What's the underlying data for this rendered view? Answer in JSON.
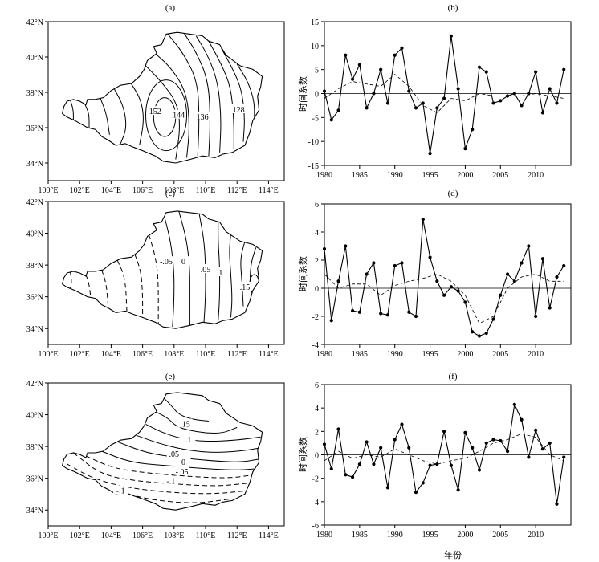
{
  "figure": {
    "panel_labels": [
      "(a)",
      "(b)",
      "(c)",
      "(d)",
      "(e)",
      "(f)"
    ],
    "ts_ylabel": "时间系数",
    "ts_xlabel": "年份",
    "map_lon_ticks": [
      "100°E",
      "102°E",
      "104°E",
      "106°E",
      "108°E",
      "110°E",
      "112°E",
      "114°E"
    ],
    "map_lat_ticks": [
      "42°N",
      "40°N",
      "38°N",
      "36°N",
      "34°N"
    ]
  },
  "chart_data": [
    {
      "type": "contour",
      "panel": "(a)",
      "xlim": [
        100,
        115
      ],
      "ylim": [
        33,
        42
      ],
      "contour_labels": [
        {
          "text": "152",
          "lon": 106.8,
          "lat": 36.9
        },
        {
          "text": "144",
          "lon": 108.3,
          "lat": 36.7
        },
        {
          "text": "136",
          "lon": 109.8,
          "lat": 36.6
        },
        {
          "text": "128",
          "lon": 112.1,
          "lat": 37.0
        }
      ]
    },
    {
      "type": "line",
      "panel": "(b)",
      "xlim": [
        1980,
        2015
      ],
      "ylim": [
        -15,
        15
      ],
      "yticks": [
        -15,
        -10,
        -5,
        0,
        5,
        10,
        15
      ],
      "xticks": [
        1980,
        1985,
        1990,
        1995,
        2000,
        2005,
        2010
      ],
      "reference_line": 0,
      "series": [
        {
          "style": "solid-dots",
          "x": [
            1980,
            1981,
            1982,
            1983,
            1984,
            1985,
            1986,
            1987,
            1988,
            1989,
            1990,
            1991,
            1992,
            1993,
            1994,
            1995,
            1996,
            1997,
            1998,
            1999,
            2000,
            2001,
            2002,
            2003,
            2004,
            2005,
            2006,
            2007,
            2008,
            2009,
            2010,
            2011,
            2012,
            2013,
            2014
          ],
          "values": [
            0.5,
            -5.5,
            -3.5,
            8,
            3,
            6,
            -3,
            0,
            5,
            -2,
            8,
            9.5,
            0.5,
            -3,
            -2,
            -12.5,
            -3,
            -1,
            12,
            1,
            -11.5,
            -7.5,
            5.5,
            4.5,
            -2,
            -1.5,
            -0.5,
            0,
            -2.5,
            0,
            4.5,
            -4,
            1,
            -2,
            5
          ]
        },
        {
          "style": "dashed",
          "x": [
            1980,
            1982,
            1984,
            1986,
            1988,
            1990,
            1992,
            1994,
            1996,
            1998,
            2000,
            2002,
            2004,
            2006,
            2008,
            2010,
            2012,
            2014
          ],
          "values": [
            -1,
            1,
            2.5,
            2,
            1.5,
            4,
            1.5,
            -2.5,
            -4,
            -1,
            -1.5,
            0,
            -0.5,
            -0.5,
            -0.5,
            0,
            -0.5,
            -1
          ]
        }
      ]
    },
    {
      "type": "contour",
      "panel": "(c)",
      "xlim": [
        100,
        115
      ],
      "ylim": [
        33,
        42
      ],
      "contour_labels": [
        {
          "text": "-.05",
          "lon": 107.5,
          "lat": 38.2
        },
        {
          "text": "0",
          "lon": 108.6,
          "lat": 38.2
        },
        {
          "text": ".05",
          "lon": 110.0,
          "lat": 37.7
        },
        {
          "text": ".1",
          "lon": 110.9,
          "lat": 37.5
        },
        {
          "text": ".15",
          "lon": 112.5,
          "lat": 36.6
        }
      ]
    },
    {
      "type": "line",
      "panel": "(d)",
      "xlim": [
        1980,
        2015
      ],
      "ylim": [
        -4,
        6
      ],
      "yticks": [
        -4,
        -2,
        0,
        2,
        4,
        6
      ],
      "xticks": [
        1980,
        1985,
        1990,
        1995,
        2000,
        2005,
        2010
      ],
      "reference_line": 0,
      "series": [
        {
          "style": "solid-dots",
          "x": [
            1980,
            1981,
            1982,
            1983,
            1984,
            1985,
            1986,
            1987,
            1988,
            1989,
            1990,
            1991,
            1992,
            1993,
            1994,
            1995,
            1996,
            1997,
            1998,
            1999,
            2000,
            2001,
            2002,
            2003,
            2004,
            2005,
            2006,
            2007,
            2008,
            2009,
            2010,
            2011,
            2012,
            2013,
            2014
          ],
          "values": [
            2.8,
            -2.3,
            0.5,
            3,
            -1.6,
            -1.7,
            1,
            1.8,
            -1.8,
            -1.9,
            1.6,
            1.8,
            -1.7,
            -2,
            4.9,
            2.2,
            0.5,
            -0.5,
            0.1,
            -0.2,
            -1,
            -3.1,
            -3.4,
            -3.2,
            -2.2,
            -0.5,
            1,
            0.5,
            1.8,
            3,
            -2,
            2.1,
            -1.4,
            0.8,
            1.6
          ]
        },
        {
          "style": "dashed",
          "x": [
            1980,
            1982,
            1984,
            1986,
            1988,
            1990,
            1992,
            1994,
            1996,
            1998,
            2000,
            2002,
            2004,
            2006,
            2008,
            2010,
            2012,
            2014
          ],
          "values": [
            1,
            0,
            0.3,
            0.3,
            -0.5,
            0.2,
            0.5,
            0.7,
            1,
            0.5,
            -0.5,
            -2.5,
            -2,
            0,
            0.8,
            1,
            0.5,
            0.5
          ]
        }
      ]
    },
    {
      "type": "contour",
      "panel": "(e)",
      "xlim": [
        100,
        115
      ],
      "ylim": [
        33,
        42
      ],
      "contour_labels": [
        {
          "text": ".15",
          "lon": 108.7,
          "lat": 39.4
        },
        {
          "text": ".1",
          "lon": 108.9,
          "lat": 38.4
        },
        {
          "text": ".05",
          "lon": 108.0,
          "lat": 37.5
        },
        {
          "text": "0",
          "lon": 108.6,
          "lat": 37.0
        },
        {
          "text": "-.05",
          "lon": 108.5,
          "lat": 36.4
        },
        {
          "text": "-.1",
          "lon": 107.8,
          "lat": 35.8
        },
        {
          "text": "-.1",
          "lon": 104.6,
          "lat": 35.2
        }
      ]
    },
    {
      "type": "line",
      "panel": "(f)",
      "xlim": [
        1980,
        2015
      ],
      "ylim": [
        -6,
        6
      ],
      "yticks": [
        -6,
        -4,
        -2,
        0,
        2,
        4,
        6
      ],
      "xticks": [
        1980,
        1985,
        1990,
        1995,
        2000,
        2005,
        2010
      ],
      "reference_line": 0,
      "series": [
        {
          "style": "solid-dots",
          "x": [
            1980,
            1981,
            1982,
            1983,
            1984,
            1985,
            1986,
            1987,
            1988,
            1989,
            1990,
            1991,
            1992,
            1993,
            1994,
            1995,
            1996,
            1997,
            1998,
            1999,
            2000,
            2001,
            2002,
            2003,
            2004,
            2005,
            2006,
            2007,
            2008,
            2009,
            2010,
            2011,
            2012,
            2013,
            2014
          ],
          "values": [
            0.9,
            -1.2,
            2.2,
            -1.7,
            -1.9,
            -0.8,
            1.1,
            -0.8,
            0.6,
            -2.8,
            1.3,
            2.6,
            0.6,
            -3.2,
            -2.4,
            -0.9,
            -0.8,
            2,
            -0.9,
            -3,
            1.9,
            0.6,
            -1.3,
            1,
            1.3,
            1.2,
            0.3,
            4.3,
            3,
            -0.2,
            2.1,
            0.5,
            1,
            -4.2,
            -0.2
          ]
        },
        {
          "style": "dashed",
          "x": [
            1980,
            1982,
            1984,
            1986,
            1988,
            1990,
            1992,
            1994,
            1996,
            1998,
            2000,
            2002,
            2004,
            2006,
            2008,
            2010,
            2012,
            2014
          ],
          "values": [
            -0.5,
            0.3,
            -0.3,
            0,
            -0.2,
            0.5,
            0,
            -0.5,
            -0.8,
            -0.5,
            -0.3,
            0.3,
            1,
            1.3,
            1.8,
            1.5,
            0,
            -0.5
          ]
        }
      ]
    }
  ]
}
